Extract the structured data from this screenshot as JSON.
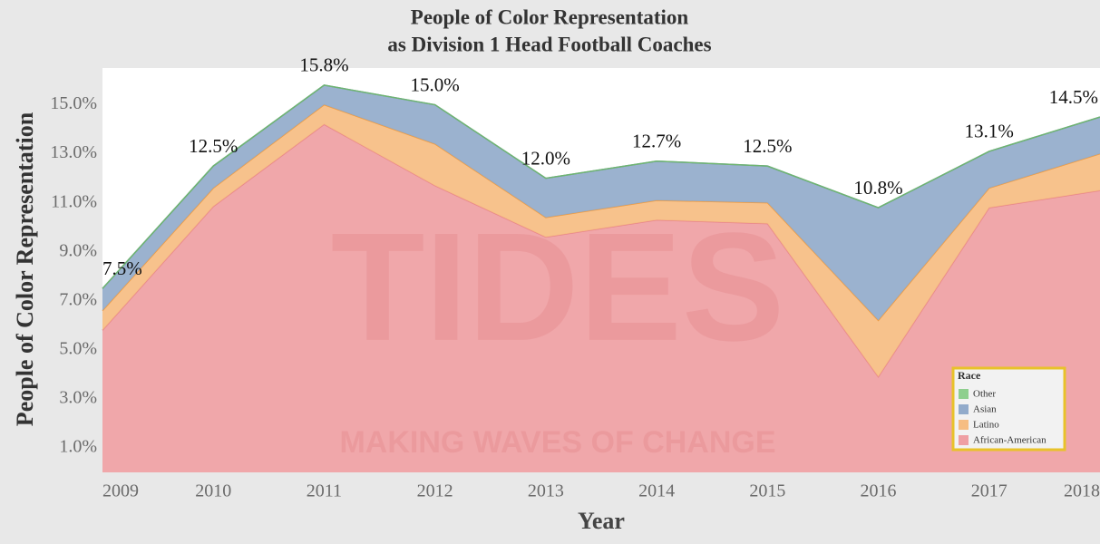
{
  "chart_data": {
    "type": "stacked_area",
    "title": [
      "People of Color Representation",
      "as Division 1 Head Football Coaches"
    ],
    "xlabel": "Year",
    "ylabel": "People of Color Representation",
    "x": [
      2009,
      2010,
      2011,
      2012,
      2013,
      2014,
      2015,
      2016,
      2017,
      2018
    ],
    "xlim": [
      2009,
      2018
    ],
    "xticks": [
      2009,
      2010,
      2011,
      2012,
      2013,
      2014,
      2015,
      2016,
      2017,
      2018
    ],
    "ylim": [
      0,
      16.5
    ],
    "yticks": [
      {
        "value": 1,
        "label": "1.0%"
      },
      {
        "value": 3,
        "label": "3.0%"
      },
      {
        "value": 5,
        "label": "5.0%"
      },
      {
        "value": 7,
        "label": "7.0%"
      },
      {
        "value": 9,
        "label": "9.0%"
      },
      {
        "value": 11,
        "label": "11.0%"
      },
      {
        "value": 13,
        "label": "13.0%"
      },
      {
        "value": 15,
        "label": "15.0%"
      }
    ],
    "legend_title": "Race",
    "legend_position": "lower right",
    "series": [
      {
        "name": "Other",
        "color": "#8fcf8f",
        "line": "#6fb56f",
        "values": [
          0,
          0,
          0,
          0,
          0,
          0,
          0,
          0,
          0,
          0
        ]
      },
      {
        "name": "Asian",
        "color": "#92abcb",
        "line": "#6d90bd",
        "values": [
          0.9,
          0.9,
          0.8,
          1.6,
          1.6,
          1.6,
          1.5,
          4.6,
          1.5,
          1.5
        ]
      },
      {
        "name": "Latino",
        "color": "#f6bd82",
        "line": "#f39c3e",
        "values": [
          0.8,
          0.75,
          0.8,
          1.7,
          0.8,
          0.8,
          0.85,
          2.3,
          0.8,
          1.5
        ]
      },
      {
        "name": "African-American",
        "color": "#ef9fa3",
        "line": "#e8868b",
        "values": [
          5.8,
          10.85,
          14.2,
          11.7,
          9.6,
          10.3,
          10.15,
          3.9,
          10.8,
          11.5
        ]
      }
    ],
    "totals": {
      "values": [
        7.5,
        12.5,
        15.8,
        15.0,
        12.0,
        12.7,
        12.5,
        10.8,
        13.1,
        14.5
      ],
      "value_labels": [
        "7.5%",
        "12.5%",
        "15.8%",
        "15.0%",
        "12.0%",
        "12.7%",
        "12.5%",
        "10.8%",
        "13.1%",
        "14.5%"
      ]
    },
    "watermark": [
      "TIDES",
      "MAKING WAVES OF CHANGE"
    ]
  }
}
